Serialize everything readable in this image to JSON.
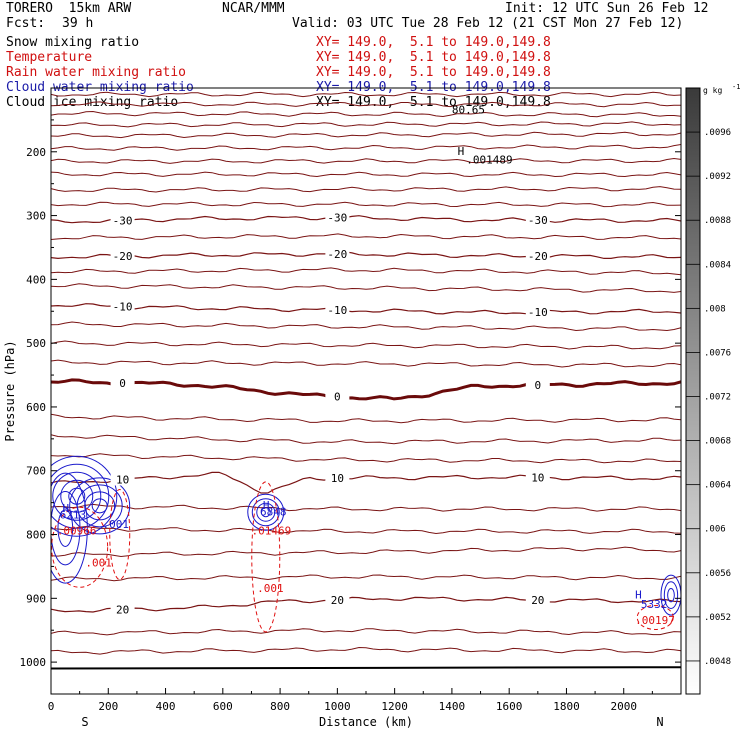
{
  "header": {
    "model": "TORERO  15km ARW",
    "center": "NCAR/MMM",
    "init": "Init: 12 UTC Sun 26 Feb 12",
    "fcst_label": "Fcst:",
    "fcst_value": "39 h",
    "valid": "Valid: 03 UTC Tue 28 Feb 12 (21 CST Mon 27 Feb 12)"
  },
  "fields": [
    {
      "name": "Snow mixing ratio",
      "xy": "XY= 149.0,  5.1 to 149.0,149.8",
      "color": "#000000"
    },
    {
      "name": "Temperature",
      "xy": "XY= 149.0,  5.1 to 149.0,149.8",
      "color": "#d01010"
    },
    {
      "name": "Rain water mixing ratio",
      "xy": "XY= 149.0,  5.1 to 149.0,149.8",
      "color": "#d01010"
    },
    {
      "name": "Cloud water mixing ratio",
      "xy": "XY= 149.0,  5.1 to 149.0,149.8",
      "color": "#1a1aa8"
    },
    {
      "name": "Cloud ice mixing ratio",
      "xy": "XY= 149.0,  5.1 to 149.0,149.8",
      "color": "#000000"
    }
  ],
  "colors": {
    "temperature": "#7a1414",
    "temperature_zero": "#6a0a0a",
    "rain": "#e01010",
    "cloud_water": "#1a1acc",
    "axis": "#000000"
  },
  "chart_data": {
    "type": "contour",
    "xlabel": "Distance (km)",
    "ylabel": "Pressure (hPa)",
    "xlim": [
      0,
      2200
    ],
    "ylim": [
      1050,
      100
    ],
    "x_ticks": [
      0,
      200,
      400,
      600,
      800,
      1000,
      1200,
      1400,
      1600,
      1800,
      2000
    ],
    "y_ticks": [
      200,
      300,
      400,
      500,
      600,
      700,
      800,
      900,
      1000
    ],
    "endpoints": {
      "left": "S",
      "right": "N"
    },
    "colorbar": {
      "unit": "g kg",
      "unit_exponent": "-1",
      "ticks": [
        ".0096",
        ".0092",
        ".0088",
        ".0084",
        ".008",
        ".0076",
        ".0072",
        ".0068",
        ".0064",
        ".006",
        ".0056",
        ".0052",
        ".0048"
      ],
      "range": [
        0.0045,
        0.01
      ]
    },
    "temperature_contours": [
      {
        "label": "-30",
        "x": [
          0,
          500,
          1000,
          1500,
          2200
        ],
        "p": [
          310,
          305,
          303,
          307,
          308
        ]
      },
      {
        "label": "-20",
        "x": [
          0,
          500,
          1000,
          1500,
          2200
        ],
        "p": [
          365,
          362,
          360,
          363,
          365
        ]
      },
      {
        "label": "-10",
        "x": [
          0,
          500,
          1000,
          1500,
          2200
        ],
        "p": [
          440,
          445,
          448,
          452,
          450
        ]
      },
      {
        "label": "0",
        "x": [
          0,
          500,
          900,
          1200,
          1500,
          2200
        ],
        "p": [
          560,
          565,
          582,
          588,
          567,
          562
        ]
      },
      {
        "label": "10",
        "x": [
          0,
          600,
          750,
          900,
          1500,
          2200
        ],
        "p": [
          720,
          705,
          735,
          712,
          710,
          712
        ]
      },
      {
        "label": "20",
        "x": [
          0,
          500,
          800,
          1200,
          1800,
          2200
        ],
        "p": [
          920,
          915,
          905,
          900,
          903,
          905
        ]
      }
    ],
    "extra_contours": [
      {
        "x": [
          0,
          2200
        ],
        "p": [
          110,
          110
        ]
      },
      {
        "x": [
          0,
          2200
        ],
        "p": [
          125,
          126
        ]
      },
      {
        "x": [
          0,
          2200
        ],
        "p": [
          140,
          142
        ]
      },
      {
        "x": [
          0,
          2200
        ],
        "p": [
          158,
          156
        ]
      },
      {
        "x": [
          0,
          2200
        ],
        "p": [
          175,
          172
        ]
      },
      {
        "x": [
          0,
          2200
        ],
        "p": [
          195,
          192
        ]
      },
      {
        "x": [
          0,
          2200
        ],
        "p": [
          215,
          214
        ]
      },
      {
        "x": [
          0,
          2200
        ],
        "p": [
          235,
          236
        ]
      },
      {
        "x": [
          0,
          2200
        ],
        "p": [
          260,
          258
        ]
      },
      {
        "x": [
          0,
          2200
        ],
        "p": [
          282,
          283
        ]
      },
      {
        "x": [
          0,
          1000,
          2200
        ],
        "p": [
          335,
          332,
          335
        ]
      },
      {
        "x": [
          0,
          1000,
          2200
        ],
        "p": [
          388,
          385,
          390
        ]
      },
      {
        "x": [
          0,
          1000,
          2200
        ],
        "p": [
          410,
          413,
          418
        ]
      },
      {
        "x": [
          0,
          1000,
          2200
        ],
        "p": [
          470,
          474,
          478
        ]
      },
      {
        "x": [
          0,
          1000,
          2200
        ],
        "p": [
          500,
          503,
          507
        ]
      },
      {
        "x": [
          0,
          1000,
          2200
        ],
        "p": [
          530,
          532,
          535
        ]
      },
      {
        "x": [
          0,
          1000,
          2200
        ],
        "p": [
          615,
          622,
          620
        ]
      },
      {
        "x": [
          0,
          1000,
          2200
        ],
        "p": [
          645,
          655,
          652
        ]
      },
      {
        "x": [
          0,
          1000,
          2200
        ],
        "p": [
          675,
          683,
          685
        ]
      },
      {
        "x": [
          0,
          1000,
          2200
        ],
        "p": [
          755,
          760,
          760
        ]
      },
      {
        "x": [
          0,
          1000,
          2200
        ],
        "p": [
          790,
          795,
          795
        ]
      },
      {
        "x": [
          0,
          1000,
          1900,
          2200
        ],
        "p": [
          832,
          828,
          822,
          825
        ]
      },
      {
        "x": [
          0,
          1000,
          2200
        ],
        "p": [
          870,
          866,
          868
        ]
      },
      {
        "x": [
          0,
          1000,
          2200
        ],
        "p": [
          955,
          950,
          955
        ]
      },
      {
        "x": [
          0,
          1000,
          2200
        ],
        "p": [
          985,
          980,
          983
        ]
      }
    ],
    "ground": {
      "x": [
        0,
        2200
      ],
      "p": [
        1010,
        1008
      ]
    },
    "rain_contour_labels": [
      {
        "text": ".00966",
        "x": 20,
        "p": 800
      },
      {
        "text": ".001",
        "x": 120,
        "p": 850
      },
      {
        "text": ".01469",
        "x": 700,
        "p": 800
      },
      {
        "text": ".001",
        "x": 720,
        "p": 890
      },
      {
        "text": ".00197",
        "x": 2040,
        "p": 940
      }
    ],
    "cloud_water_labels": [
      {
        "text": "6213",
        "x": 30,
        "p": 775
      },
      {
        "text": ".001",
        "x": 180,
        "p": 790
      },
      {
        "text": "6848",
        "x": 730,
        "p": 770
      },
      {
        "text": "5332",
        "x": 2060,
        "p": 915
      }
    ],
    "extrema": [
      {
        "text": "H",
        "x": 40,
        "p": 765,
        "color": "blue"
      },
      {
        "text": "H",
        "x": 740,
        "p": 760,
        "color": "blue"
      },
      {
        "text": "H",
        "x": 2040,
        "p": 900,
        "color": "blue"
      },
      {
        "text": "H",
        "x": 1420,
        "p": 205,
        "color": "black"
      }
    ],
    "other_labels": [
      {
        "text": ".001489",
        "x": 1450,
        "p": 218
      },
      {
        "text": "80.65",
        "x": 1400,
        "p": 140
      }
    ]
  }
}
